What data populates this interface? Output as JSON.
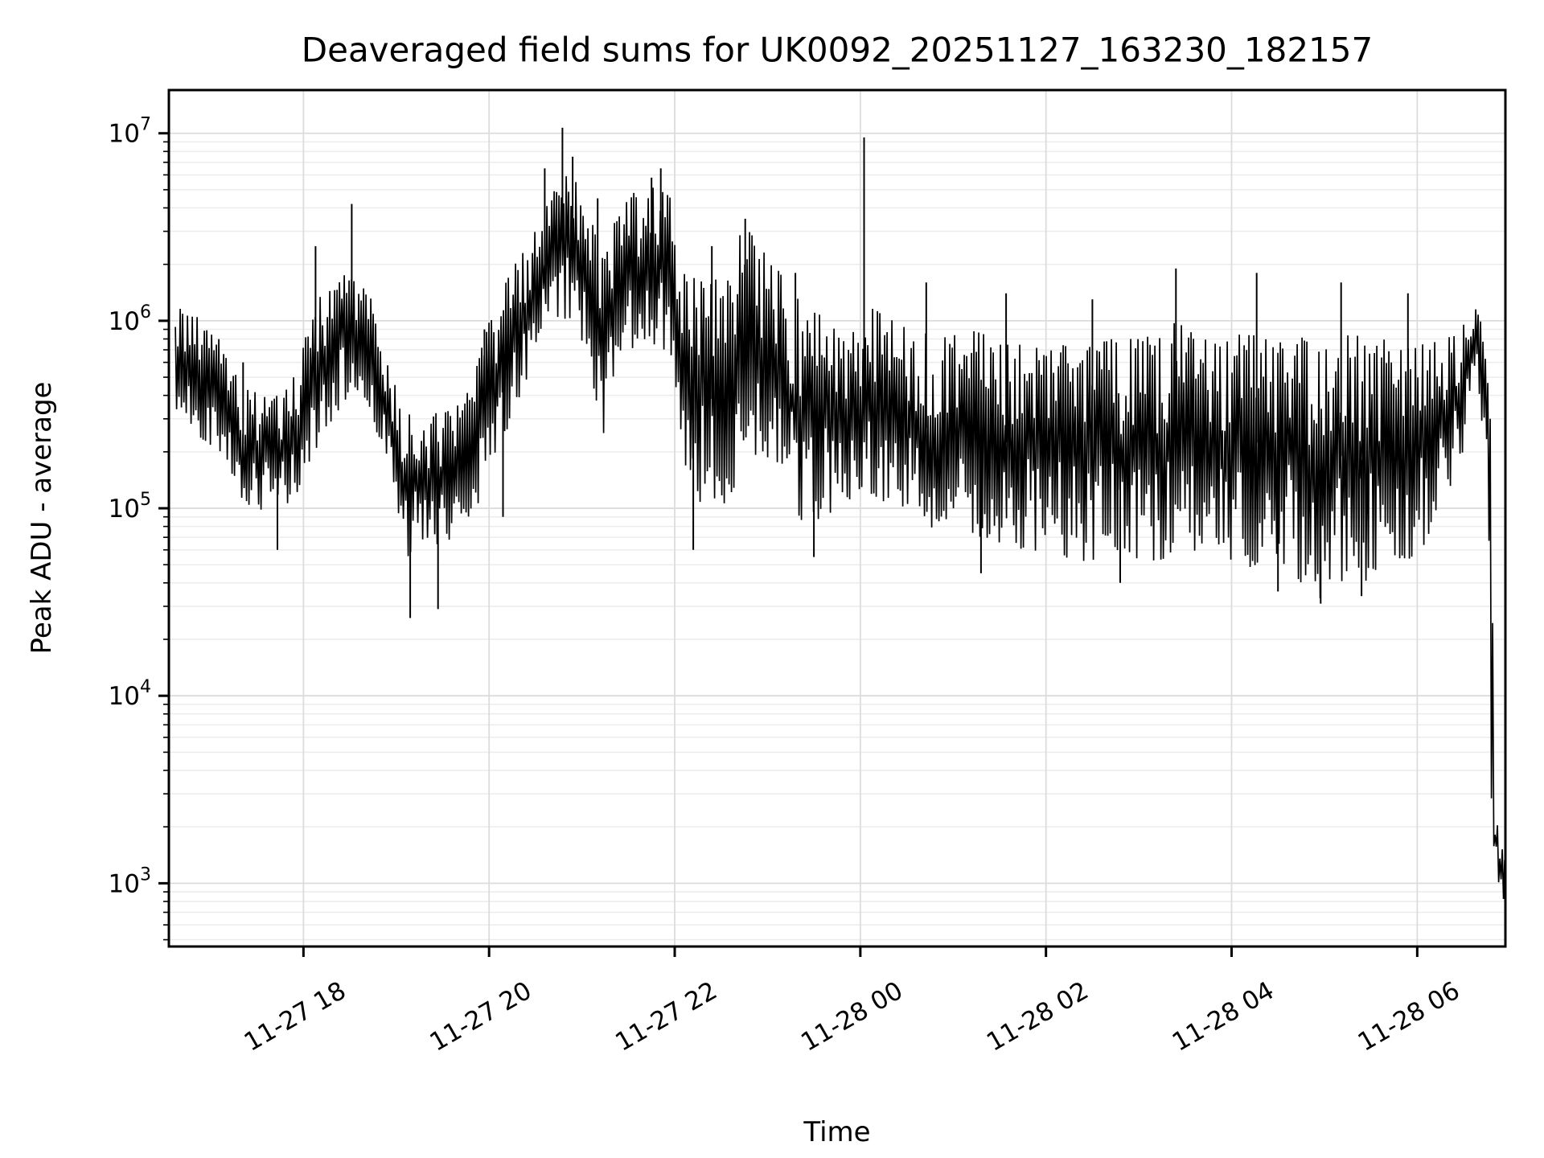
{
  "figure": {
    "title": "Deaveraged field sums for UK0092_20251127_163230_182157",
    "xlabel": "Time",
    "ylabel": "Peak ADU - average",
    "background": "#ffffff"
  },
  "chart_data": {
    "type": "line",
    "title": "Deaveraged field sums for UK0092_20251127_163230_182157",
    "xlabel": "Time",
    "ylabel": "Peak ADU - average",
    "y_scale": "log",
    "x_unit": "hours, 0 = 11-27 00:00 (values > 24 are 11-28)",
    "x_range": [
      16.55,
      30.95
    ],
    "y_range": [
      460,
      17000000
    ],
    "ylim_labeled": [
      1000,
      10000000
    ],
    "grid": {
      "show": true,
      "major_color": "#dcdcdc",
      "minor_color": "#ececec"
    },
    "legend": "none",
    "line_color": "#000000",
    "x_ticks": [
      {
        "t": 18,
        "label": "11-27 18"
      },
      {
        "t": 20,
        "label": "11-27 20"
      },
      {
        "t": 22,
        "label": "11-27 22"
      },
      {
        "t": 24,
        "label": "11-28 00"
      },
      {
        "t": 26,
        "label": "11-28 02"
      },
      {
        "t": 28,
        "label": "11-28 04"
      },
      {
        "t": 30,
        "label": "11-28 06"
      }
    ],
    "y_ticks": [
      {
        "v": 1000,
        "label": "10^3",
        "exp": 3
      },
      {
        "v": 10000,
        "label": "10^4",
        "exp": 4
      },
      {
        "v": 100000,
        "label": "10^5",
        "exp": 5
      },
      {
        "v": 1000000,
        "label": "10^6",
        "exp": 6
      },
      {
        "v": 10000000,
        "label": "10^7",
        "exp": 7
      }
    ],
    "series": [
      {
        "name": "peak ADU - average",
        "envelope_points_t_lo_hi": [
          [
            16.62,
            280000.0,
            1250000.0
          ],
          [
            16.81,
            250000.0,
            1100000.0
          ],
          [
            17.09,
            200000.0,
            800000.0
          ],
          [
            17.33,
            110000.0,
            450000.0
          ],
          [
            17.59,
            90000.0,
            400000.0
          ],
          [
            17.89,
            110000.0,
            500000.0
          ],
          [
            18.12,
            200000.0,
            1250000.0
          ],
          [
            18.33,
            320000.0,
            1600000.0
          ],
          [
            18.52,
            400000.0,
            2000000.0
          ],
          [
            18.72,
            320000.0,
            1400000.0
          ],
          [
            18.89,
            160000.0,
            630000.0
          ],
          [
            19.11,
            55000.0,
            320000.0
          ],
          [
            19.41,
            63000.0,
            320000.0
          ],
          [
            19.63,
            70000.0,
            350000.0
          ],
          [
            19.85,
            100000.0,
            550000.0
          ],
          [
            20.06,
            200000.0,
            1250000.0
          ],
          [
            20.28,
            320000.0,
            2000000.0
          ],
          [
            20.51,
            630000.0,
            3500000.0
          ],
          [
            20.79,
            1000000.0,
            7000000.0
          ],
          [
            20.98,
            800000.0,
            5500000.0
          ],
          [
            21.22,
            250000.0,
            2200000.0
          ],
          [
            21.4,
            630000.0,
            4000000.0
          ],
          [
            21.67,
            800000.0,
            5500000.0
          ],
          [
            21.95,
            630000.0,
            5000000.0
          ],
          [
            22.11,
            160000.0,
            2000000.0
          ],
          [
            22.36,
            80000.0,
            1600000.0
          ],
          [
            22.76,
            160000.0,
            3200000.0
          ],
          [
            23.06,
            125000.0,
            2000000.0
          ],
          [
            23.41,
            80000.0,
            1250000.0
          ],
          [
            23.75,
            100000.0,
            1000000.0
          ],
          [
            24.04,
            125000.0,
            1250000.0
          ],
          [
            24.36,
            100000.0,
            1000000.0
          ],
          [
            24.71,
            80000.0,
            900000.0
          ],
          [
            25.14,
            70000.0,
            900000.0
          ],
          [
            25.57,
            63000.0,
            800000.0
          ],
          [
            26.0,
            56000.0,
            800000.0
          ],
          [
            26.36,
            50000.0,
            700000.0
          ],
          [
            26.7,
            56000.0,
            800000.0
          ],
          [
            27.05,
            50000.0,
            800000.0
          ],
          [
            27.4,
            56000.0,
            1000000.0
          ],
          [
            27.74,
            50000.0,
            800000.0
          ],
          [
            28.0,
            45000.0,
            800000.0
          ],
          [
            28.27,
            50000.0,
            1000000.0
          ],
          [
            28.62,
            45000.0,
            900000.0
          ],
          [
            28.96,
            32000.0,
            800000.0
          ],
          [
            29.18,
            40000.0,
            900000.0
          ],
          [
            29.48,
            40000.0,
            800000.0
          ],
          [
            29.74,
            50000.0,
            900000.0
          ],
          [
            30.0,
            56000.0,
            800000.0
          ],
          [
            30.26,
            100000.0,
            800000.0
          ],
          [
            30.48,
            200000.0,
            1000000.0
          ],
          [
            30.63,
            400000.0,
            1500000.0
          ],
          [
            30.74,
            160000.0,
            630000.0
          ],
          [
            30.79,
            2000.0,
            400000.0
          ],
          [
            30.83,
            1100.0,
            2800.0
          ],
          [
            30.89,
            850.0,
            1800.0
          ],
          [
            30.95,
            700.0,
            1300.0
          ]
        ],
        "spikes_up_t_v": [
          [
            17.35,
            600000.0
          ],
          [
            18.13,
            2500000.0
          ],
          [
            18.52,
            4200000.0
          ],
          [
            19.95,
            900000.0
          ],
          [
            20.6,
            6500000.0
          ],
          [
            20.79,
            10700000.0
          ],
          [
            20.9,
            7500000.0
          ],
          [
            21.17,
            4500000.0
          ],
          [
            21.75,
            5800000.0
          ],
          [
            21.85,
            6500000.0
          ],
          [
            22.4,
            2500000.0
          ],
          [
            22.76,
            3500000.0
          ],
          [
            23.3,
            1800000.0
          ],
          [
            24.04,
            9500000.0
          ],
          [
            24.71,
            1600000.0
          ],
          [
            25.57,
            1400000.0
          ],
          [
            26.5,
            1300000.0
          ],
          [
            27.4,
            1900000.0
          ],
          [
            28.27,
            1800000.0
          ],
          [
            29.18,
            1600000.0
          ],
          [
            29.9,
            1400000.0
          ]
        ],
        "spikes_down_t_v": [
          [
            17.72,
            60000.0
          ],
          [
            19.15,
            26000.0
          ],
          [
            19.45,
            29000.0
          ],
          [
            20.15,
            90000.0
          ],
          [
            22.2,
            60000.0
          ],
          [
            23.5,
            55000.0
          ],
          [
            25.3,
            45000.0
          ],
          [
            26.8,
            40000.0
          ],
          [
            28.5,
            36000.0
          ],
          [
            28.96,
            31000.0
          ],
          [
            29.4,
            34000.0
          ]
        ]
      }
    ]
  }
}
